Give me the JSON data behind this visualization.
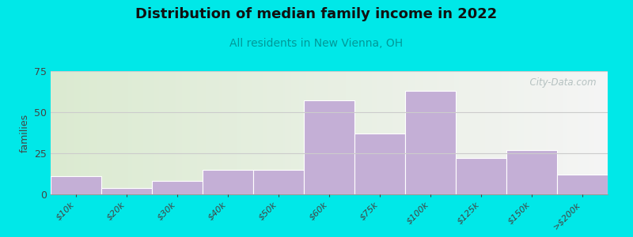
{
  "title": "Distribution of median family income in 2022",
  "subtitle": "All residents in New Vienna, OH",
  "ylabel": "families",
  "categories": [
    "$10k",
    "$20k",
    "$30k",
    "$40k",
    "$50k",
    "$60k",
    "$75k",
    "$100k",
    "$125k",
    "$150k",
    ">$200k"
  ],
  "values": [
    11,
    4,
    8,
    15,
    15,
    57,
    37,
    63,
    22,
    27,
    12
  ],
  "bar_color": "#c4afd6",
  "bar_edge_color": "#ffffff",
  "ylim": [
    0,
    75
  ],
  "yticks": [
    0,
    25,
    50,
    75
  ],
  "background_color": "#00e8e8",
  "title_fontsize": 13,
  "subtitle_fontsize": 10,
  "subtitle_color": "#009999",
  "ylabel_fontsize": 9,
  "grid_color": "#cccccc",
  "watermark_text": "  City-Data.com",
  "watermark_color": "#aab8b8",
  "tick_label_color": "#444444",
  "tick_label_fontsize": 8
}
